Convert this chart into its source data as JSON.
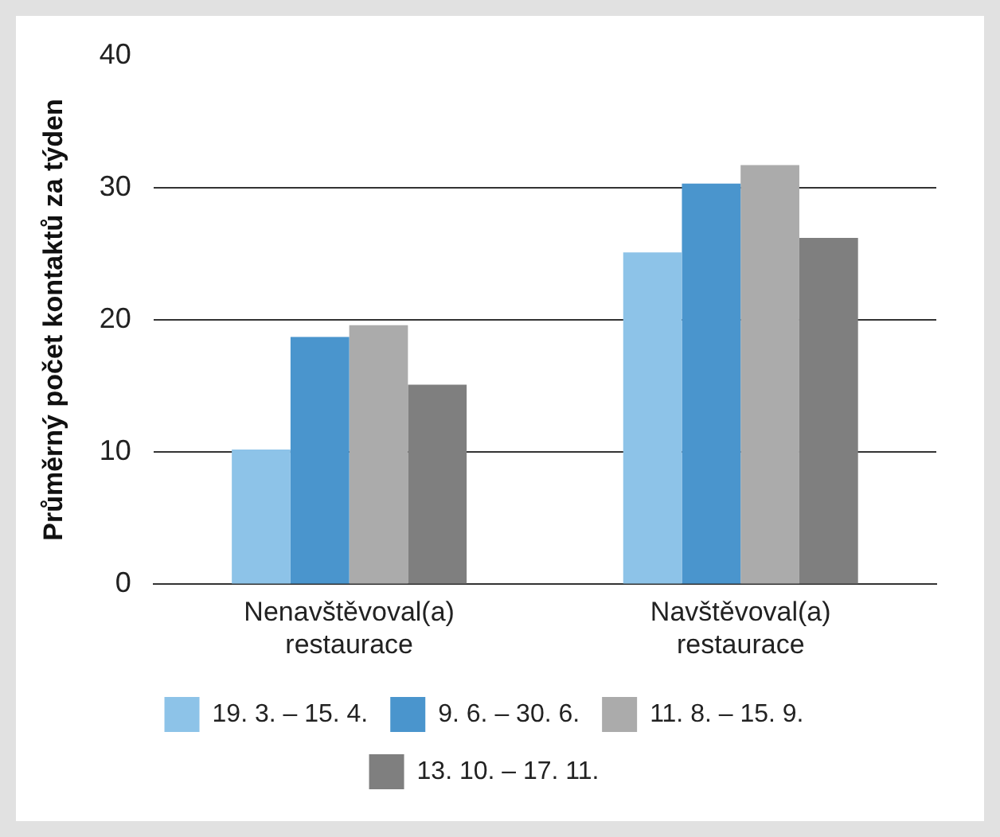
{
  "chart_data": {
    "type": "bar",
    "ylabel": "Průměrný počet kontaktů za týden",
    "categories": [
      "Nenavštěvoval(a) restaurace",
      "Navštěvoval(a) restaurace"
    ],
    "series": [
      {
        "name": "19. 3. – 15. 4.",
        "color": "#8dc3e8",
        "values": [
          10.2,
          25.1
        ]
      },
      {
        "name": "9. 6. – 30. 6.",
        "color": "#4a95cd",
        "values": [
          18.7,
          30.3
        ]
      },
      {
        "name": "11. 8. – 15. 9.",
        "color": "#ababab",
        "values": [
          19.6,
          31.7
        ]
      },
      {
        "name": "13. 10. – 17. 11.",
        "color": "#7f7f7f",
        "values": [
          15.1,
          26.2
        ]
      }
    ],
    "ylim": [
      0,
      40
    ],
    "yticks": [
      0,
      10,
      20,
      30,
      40
    ],
    "grid": "y",
    "legend": "bottom"
  }
}
